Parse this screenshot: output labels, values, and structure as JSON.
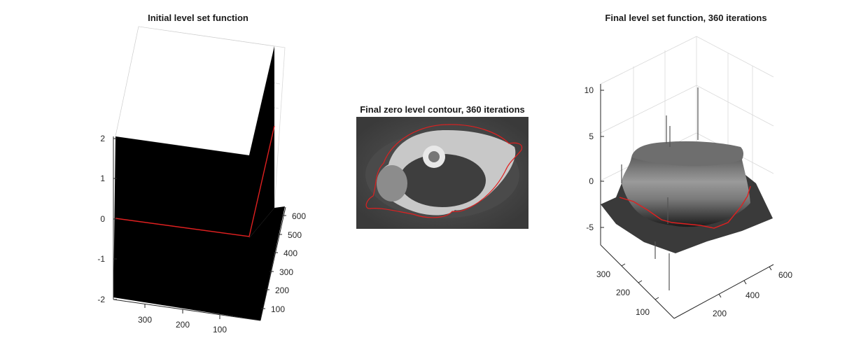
{
  "colors": {
    "contour": "#e02020",
    "surface_dark": "#000000",
    "surface_light": "#ffffff",
    "axis": "#262626",
    "grid": "#d9d9d9"
  },
  "chart_data": [
    {
      "type": "surface",
      "title": "Initial level set function",
      "z_ticks": [
        "2",
        "1",
        "0",
        "-1",
        "-2"
      ],
      "zlim": [
        -2,
        2
      ],
      "x_ticks": [
        "300",
        "200",
        "100"
      ],
      "y_ticks": [
        "600",
        "500",
        "400",
        "300",
        "200",
        "100"
      ],
      "surface": "step function: constant -2 on outer region, constant 2 on inner region",
      "zero_level": 0,
      "colormap": "gray"
    },
    {
      "type": "image",
      "title": "Final zero level contour, 360 iterations",
      "image": "axial CT slice of vertebra, grayscale",
      "overlay": "red zero level contour"
    },
    {
      "type": "surface",
      "title": "Final level set function, 360 iterations",
      "z_ticks": [
        "10",
        "5",
        "0",
        "-5"
      ],
      "zlim": [
        -8,
        11
      ],
      "x_ticks": [
        "300",
        "200",
        "100"
      ],
      "y_ticks": [
        "600",
        "400",
        "200"
      ],
      "iterations": 360,
      "zero_level": 0,
      "colormap": "gray"
    }
  ]
}
